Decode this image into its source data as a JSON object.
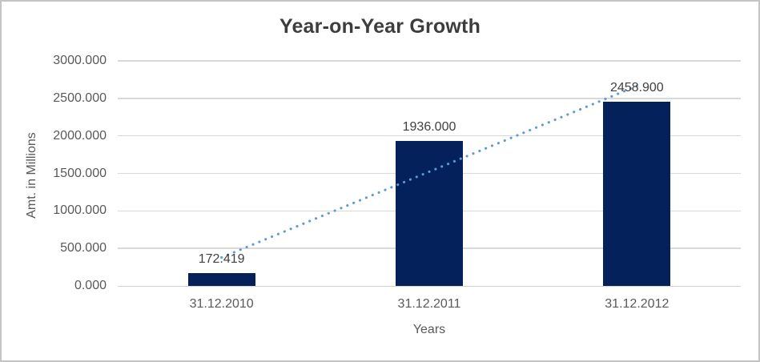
{
  "chart_data": {
    "type": "bar",
    "title": "Year-on-Year Growth",
    "xlabel": "Years",
    "ylabel": "Amt. in Millions",
    "categories": [
      "31.12.2010",
      "31.12.2011",
      "31.12.2012"
    ],
    "values": [
      172.419,
      1936.0,
      2458.9
    ],
    "data_labels": [
      "172.419",
      "1936.000",
      "2458.900"
    ],
    "ylim": [
      0,
      3000
    ],
    "ytick_step": 500,
    "ytick_labels": [
      "0.000",
      "500.000",
      "1000.000",
      "1500.000",
      "2000.000",
      "2500.000",
      "3000.000"
    ],
    "grid": true,
    "legend": false,
    "trendline": {
      "type": "linear",
      "style": "dotted",
      "color": "#5b9bd5"
    },
    "colors": {
      "bar": "#04215c",
      "gridline": "#d9d9d9",
      "axis_line": "#d2d2d2",
      "title_text": "#3d3d3d",
      "axis_text": "#595959",
      "data_label_text": "#404040",
      "background": "#ffffff",
      "border": "#c4c4c4"
    }
  }
}
